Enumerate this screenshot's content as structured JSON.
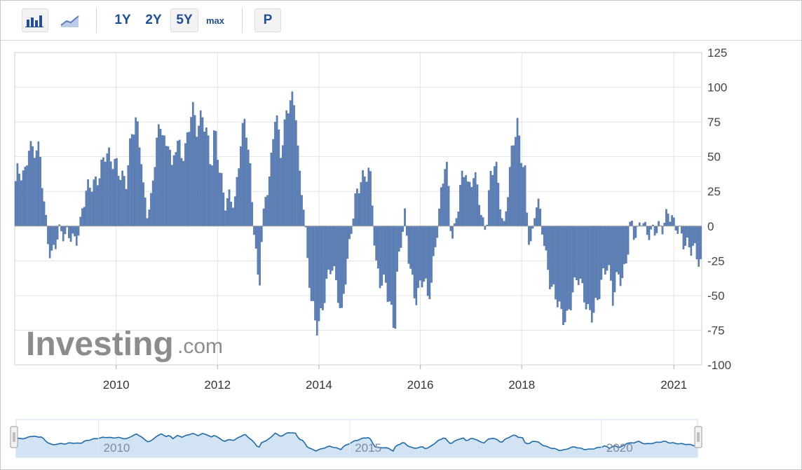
{
  "toolbar": {
    "bar_chart_icon": "bar-chart-icon",
    "line_chart_icon": "line-chart-icon",
    "periods": [
      "1Y",
      "2Y",
      "5Y",
      "max"
    ],
    "active_period": "5Y",
    "p_label": "P"
  },
  "watermark": {
    "brand": "Investing",
    "suffix": ".com"
  },
  "colors": {
    "bar": "#5b7fb8",
    "bar_stroke": "#3e5f95",
    "grid": "#e3e3e3",
    "nav_line": "#1f6aac",
    "nav_fill": "#d2e4f4"
  },
  "chart_data": {
    "type": "bar",
    "title": "",
    "xlabel": "",
    "ylabel": "",
    "ylim": [
      -100,
      125
    ],
    "yticks": [
      125,
      100,
      75,
      50,
      25,
      0,
      -25,
      -50,
      -75,
      -100
    ],
    "xlim": [
      2008.0,
      2021.55
    ],
    "xticks": [
      {
        "x": 2010.0,
        "label": "2010"
      },
      {
        "x": 2012.0,
        "label": "2012"
      },
      {
        "x": 2014.0,
        "label": "2014"
      },
      {
        "x": 2016.0,
        "label": "2016"
      },
      {
        "x": 2018.0,
        "label": "2018"
      },
      {
        "x": 2021.0,
        "label": "2021"
      }
    ],
    "anchors": [
      [
        2008.0,
        25
      ],
      [
        2008.05,
        35
      ],
      [
        2008.2,
        38
      ],
      [
        2008.28,
        62
      ],
      [
        2008.38,
        55
      ],
      [
        2008.5,
        50
      ],
      [
        2008.58,
        15
      ],
      [
        2008.65,
        -5
      ],
      [
        2008.72,
        -20
      ],
      [
        2008.8,
        -10
      ],
      [
        2008.9,
        -7
      ],
      [
        2009.0,
        -10
      ],
      [
        2009.1,
        -3
      ],
      [
        2009.2,
        -8
      ],
      [
        2009.3,
        0
      ],
      [
        2009.35,
        12
      ],
      [
        2009.4,
        20
      ],
      [
        2009.5,
        30
      ],
      [
        2009.6,
        35
      ],
      [
        2009.7,
        42
      ],
      [
        2009.8,
        50
      ],
      [
        2009.9,
        45
      ],
      [
        2010.0,
        48
      ],
      [
        2010.1,
        40
      ],
      [
        2010.2,
        30
      ],
      [
        2010.3,
        60
      ],
      [
        2010.4,
        78
      ],
      [
        2010.5,
        55
      ],
      [
        2010.55,
        25
      ],
      [
        2010.62,
        10
      ],
      [
        2010.7,
        15
      ],
      [
        2010.8,
        60
      ],
      [
        2010.9,
        78
      ],
      [
        2011.0,
        55
      ],
      [
        2011.05,
        70
      ],
      [
        2011.1,
        35
      ],
      [
        2011.2,
        60
      ],
      [
        2011.3,
        50
      ],
      [
        2011.4,
        65
      ],
      [
        2011.5,
        88
      ],
      [
        2011.6,
        65
      ],
      [
        2011.7,
        78
      ],
      [
        2011.8,
        70
      ],
      [
        2011.88,
        45
      ],
      [
        2011.95,
        72
      ],
      [
        2012.05,
        35
      ],
      [
        2012.15,
        15
      ],
      [
        2012.25,
        25
      ],
      [
        2012.35,
        20
      ],
      [
        2012.45,
        55
      ],
      [
        2012.55,
        75
      ],
      [
        2012.65,
        40
      ],
      [
        2012.72,
        5
      ],
      [
        2012.78,
        -25
      ],
      [
        2012.82,
        -50
      ],
      [
        2012.88,
        -5
      ],
      [
        2012.95,
        15
      ],
      [
        2013.05,
        40
      ],
      [
        2013.15,
        90
      ],
      [
        2013.25,
        55
      ],
      [
        2013.35,
        75
      ],
      [
        2013.45,
        90
      ],
      [
        2013.55,
        85
      ],
      [
        2013.62,
        40
      ],
      [
        2013.7,
        20
      ],
      [
        2013.78,
        -30
      ],
      [
        2013.85,
        -55
      ],
      [
        2013.95,
        -75
      ],
      [
        2014.05,
        -60
      ],
      [
        2014.15,
        -40
      ],
      [
        2014.25,
        -30
      ],
      [
        2014.35,
        -45
      ],
      [
        2014.45,
        -65
      ],
      [
        2014.5,
        -40
      ],
      [
        2014.58,
        -20
      ],
      [
        2014.65,
        0
      ],
      [
        2014.72,
        15
      ],
      [
        2014.82,
        30
      ],
      [
        2014.92,
        40
      ],
      [
        2015.0,
        45
      ],
      [
        2015.05,
        25
      ],
      [
        2015.12,
        -30
      ],
      [
        2015.22,
        -45
      ],
      [
        2015.32,
        -40
      ],
      [
        2015.42,
        -55
      ],
      [
        2015.5,
        -75
      ],
      [
        2015.55,
        -35
      ],
      [
        2015.62,
        -15
      ],
      [
        2015.7,
        5
      ],
      [
        2015.75,
        -15
      ],
      [
        2015.82,
        -30
      ],
      [
        2015.9,
        -50
      ],
      [
        2016.0,
        -45
      ],
      [
        2016.08,
        -40
      ],
      [
        2016.15,
        -55
      ],
      [
        2016.22,
        -40
      ],
      [
        2016.3,
        -10
      ],
      [
        2016.4,
        20
      ],
      [
        2016.5,
        45
      ],
      [
        2016.55,
        30
      ],
      [
        2016.6,
        0
      ],
      [
        2016.65,
        -10
      ],
      [
        2016.7,
        5
      ],
      [
        2016.8,
        35
      ],
      [
        2016.9,
        40
      ],
      [
        2016.95,
        20
      ],
      [
        2017.05,
        35
      ],
      [
        2017.15,
        30
      ],
      [
        2017.22,
        5
      ],
      [
        2017.3,
        0
      ],
      [
        2017.38,
        30
      ],
      [
        2017.48,
        45
      ],
      [
        2017.58,
        20
      ],
      [
        2017.65,
        0
      ],
      [
        2017.72,
        25
      ],
      [
        2017.82,
        55
      ],
      [
        2017.92,
        70
      ],
      [
        2018.0,
        50
      ],
      [
        2018.08,
        40
      ],
      [
        2018.12,
        0
      ],
      [
        2018.2,
        -15
      ],
      [
        2018.28,
        15
      ],
      [
        2018.35,
        10
      ],
      [
        2018.4,
        0
      ],
      [
        2018.48,
        -20
      ],
      [
        2018.58,
        -40
      ],
      [
        2018.7,
        -55
      ],
      [
        2018.8,
        -70
      ],
      [
        2018.9,
        -65
      ],
      [
        2019.0,
        -45
      ],
      [
        2019.1,
        -35
      ],
      [
        2019.2,
        -50
      ],
      [
        2019.3,
        -62
      ],
      [
        2019.4,
        -60
      ],
      [
        2019.5,
        -50
      ],
      [
        2019.6,
        -40
      ],
      [
        2019.7,
        -30
      ],
      [
        2019.8,
        -50
      ],
      [
        2019.9,
        -30
      ],
      [
        2020.0,
        -40
      ],
      [
        2020.1,
        -20
      ],
      [
        2020.15,
        0
      ],
      [
        2020.22,
        -5
      ],
      [
        2020.3,
        -2
      ],
      [
        2020.35,
        12
      ],
      [
        2020.45,
        -5
      ],
      [
        2020.55,
        -10
      ],
      [
        2020.65,
        -2
      ],
      [
        2020.8,
        5
      ],
      [
        2020.9,
        10
      ],
      [
        2021.0,
        -3
      ],
      [
        2021.05,
        -2
      ],
      [
        2021.15,
        -5
      ],
      [
        2021.25,
        -10
      ],
      [
        2021.4,
        -20
      ],
      [
        2021.5,
        -28
      ],
      [
        2021.55,
        -30
      ]
    ],
    "navigator": {
      "xlim": [
        2008.0,
        2021.55
      ],
      "labels": [
        {
          "x": 2010.0,
          "label": "2010"
        },
        {
          "x": 2015.0,
          "label": "2015"
        },
        {
          "x": 2020.0,
          "label": "2020"
        }
      ]
    }
  }
}
